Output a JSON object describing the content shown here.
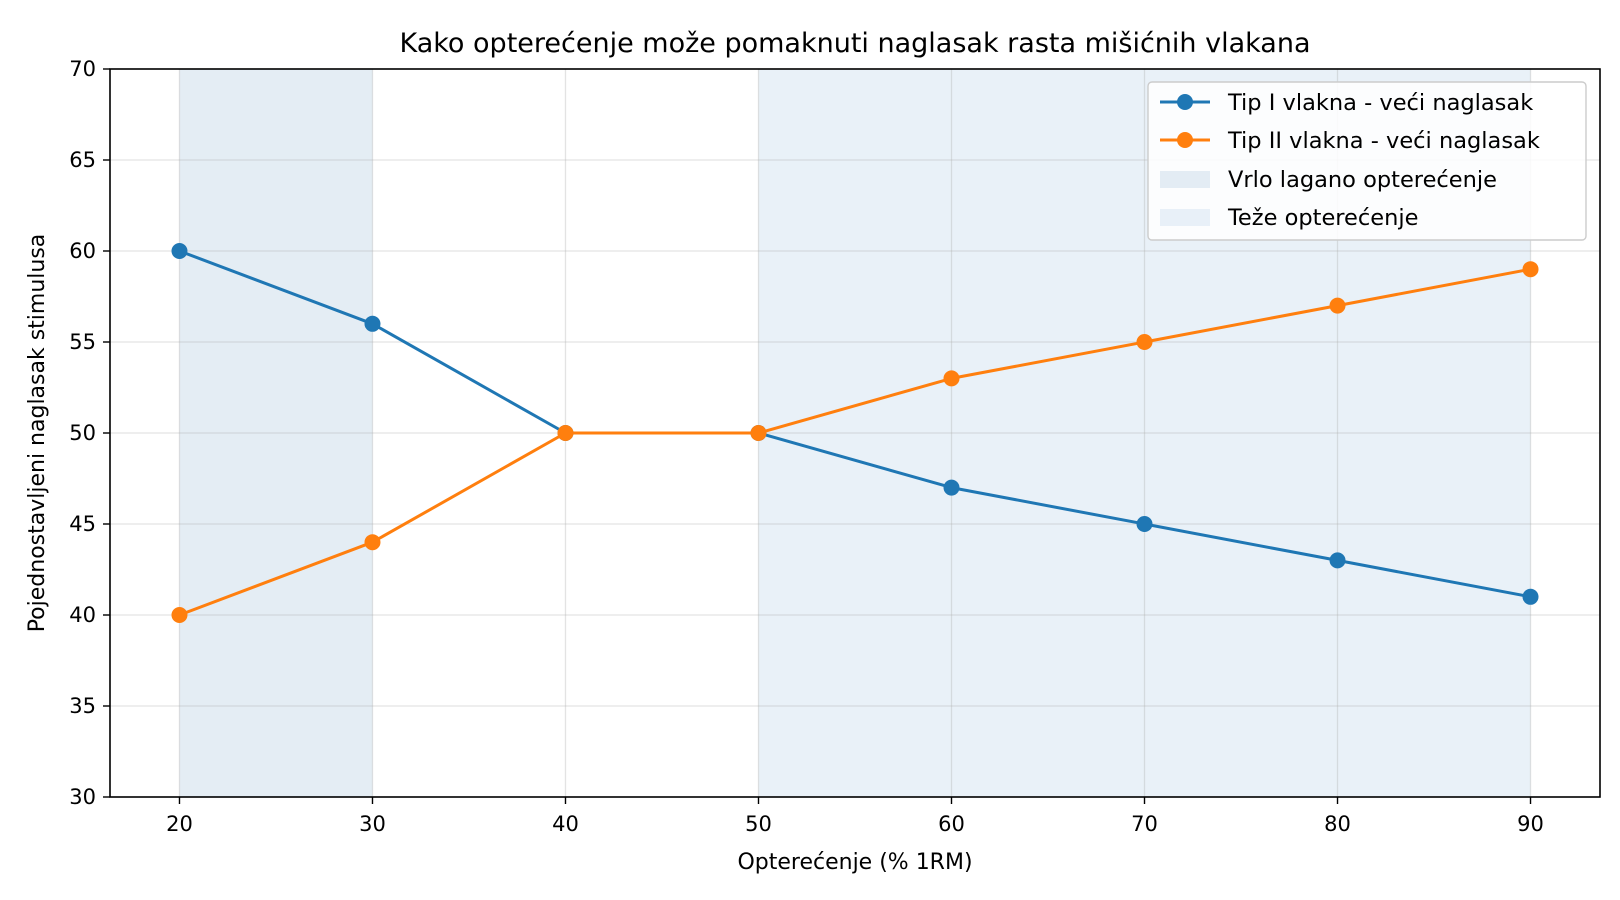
{
  "chart_data": {
    "type": "line",
    "title": "Kako opterećenje može pomaknuti naglasak rasta mišićnih vlakana",
    "xlabel": "Opterećenje (% 1RM)",
    "ylabel": "Pojednostavljeni naglasak stimulusa",
    "x": [
      20,
      30,
      40,
      50,
      60,
      70,
      80,
      90
    ],
    "xlim": [
      16.4,
      93.6
    ],
    "ylim": [
      30,
      70
    ],
    "xticks": [
      20,
      30,
      40,
      50,
      60,
      70,
      80,
      90
    ],
    "yticks": [
      30,
      35,
      40,
      45,
      50,
      55,
      60,
      65,
      70
    ],
    "grid": true,
    "legend_position": "top-right",
    "series": [
      {
        "name": "Tip I vlakna - veći naglasak",
        "color": "#1f77b4",
        "values": [
          60,
          56,
          50,
          50,
          47,
          45,
          43,
          41
        ]
      },
      {
        "name": "Tip II vlakna - veći naglasak",
        "color": "#ff7f0e",
        "values": [
          40,
          44,
          50,
          50,
          53,
          55,
          57,
          59
        ]
      }
    ],
    "shaded_regions": [
      {
        "name": "Vrlo lagano opterećenje",
        "x_from": 20,
        "x_to": 30,
        "color": "#c9dcea",
        "opacity": 0.5
      },
      {
        "name": "Teže opterećenje",
        "x_from": 50,
        "x_to": 90,
        "color": "#d3e4f1",
        "opacity": 0.5
      }
    ]
  }
}
